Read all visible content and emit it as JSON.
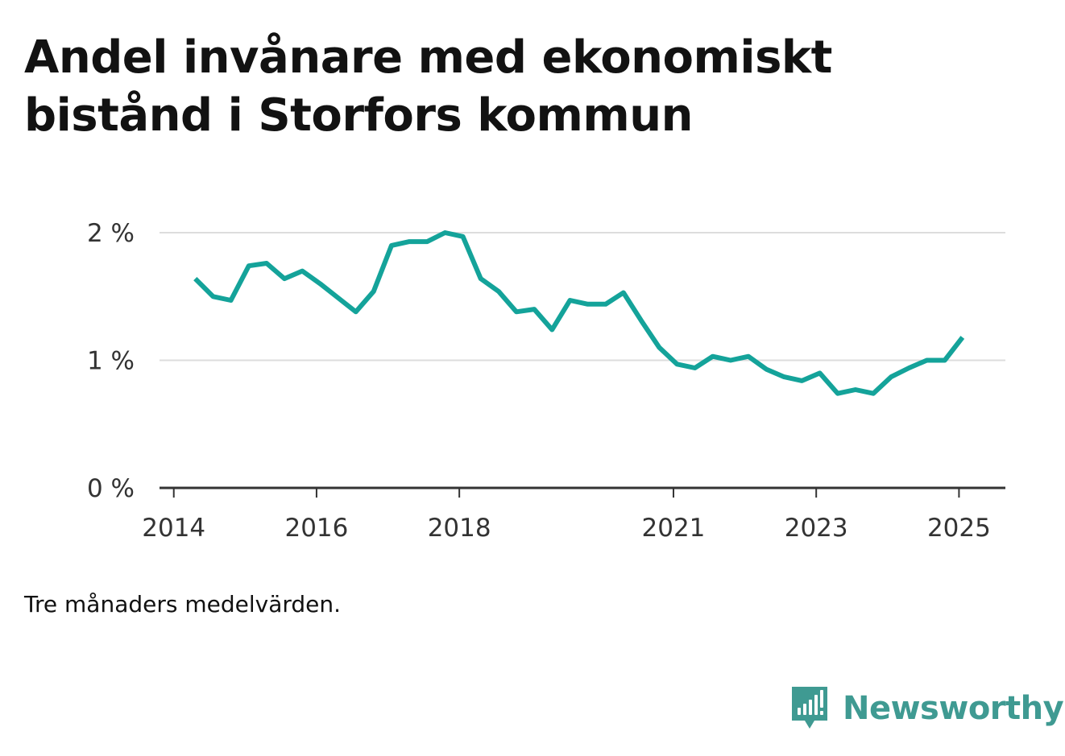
{
  "title_lines": [
    "Andel invånare med ekonomiskt",
    "bistånd i Storfors kommun"
  ],
  "note": "Tre månaders medelvärden.",
  "brand": {
    "name": "Newsworthy",
    "icon": "newsworthy-logo-icon",
    "color": "#3f9a92"
  },
  "colors": {
    "line": "#14a39a",
    "grid": "#dddddd",
    "axis": "#333333"
  },
  "chart_data": {
    "type": "line",
    "title": "Andel invånare med ekonomiskt bistånd i Storfors kommun",
    "xlabel": "",
    "ylabel": "",
    "x_ticks": [
      2014,
      2016,
      2018,
      2021,
      2023,
      2025
    ],
    "x_tick_labels": [
      "2014",
      "2016",
      "2018",
      "2021",
      "2023",
      "2025"
    ],
    "y_ticks": [
      0,
      1,
      2
    ],
    "y_tick_labels": [
      "0 %",
      "1 %",
      "2 %"
    ],
    "xlim": [
      2013.8,
      2025.65
    ],
    "ylim": [
      0,
      2
    ],
    "grid": "horizontal",
    "series": [
      {
        "x": [
          2014.3,
          2014.55,
          2014.8,
          2015.05,
          2015.3,
          2015.55,
          2015.8,
          2016.05,
          2016.3,
          2016.55,
          2016.8,
          2017.05,
          2017.3,
          2017.55,
          2017.8,
          2018.05,
          2018.3,
          2018.55,
          2018.8,
          2019.05,
          2019.3,
          2019.55,
          2019.8,
          2020.05,
          2020.3,
          2020.55,
          2020.8,
          2021.05,
          2021.3,
          2021.55,
          2021.8,
          2022.05,
          2022.3,
          2022.55,
          2022.8,
          2023.05,
          2023.3,
          2023.55,
          2023.8,
          2024.05,
          2024.3,
          2024.55,
          2024.8,
          2025.05
        ],
        "values": [
          1.64,
          1.5,
          1.47,
          1.74,
          1.76,
          1.64,
          1.7,
          1.6,
          1.49,
          1.38,
          1.54,
          1.9,
          1.93,
          1.93,
          2.0,
          1.97,
          1.64,
          1.54,
          1.38,
          1.4,
          1.24,
          1.47,
          1.44,
          1.44,
          1.53,
          1.31,
          1.1,
          0.97,
          0.94,
          1.03,
          1.0,
          1.03,
          0.93,
          0.87,
          0.84,
          0.9,
          0.74,
          0.77,
          0.74,
          0.87,
          0.94,
          1.0,
          1.0,
          1.18
        ]
      }
    ]
  }
}
